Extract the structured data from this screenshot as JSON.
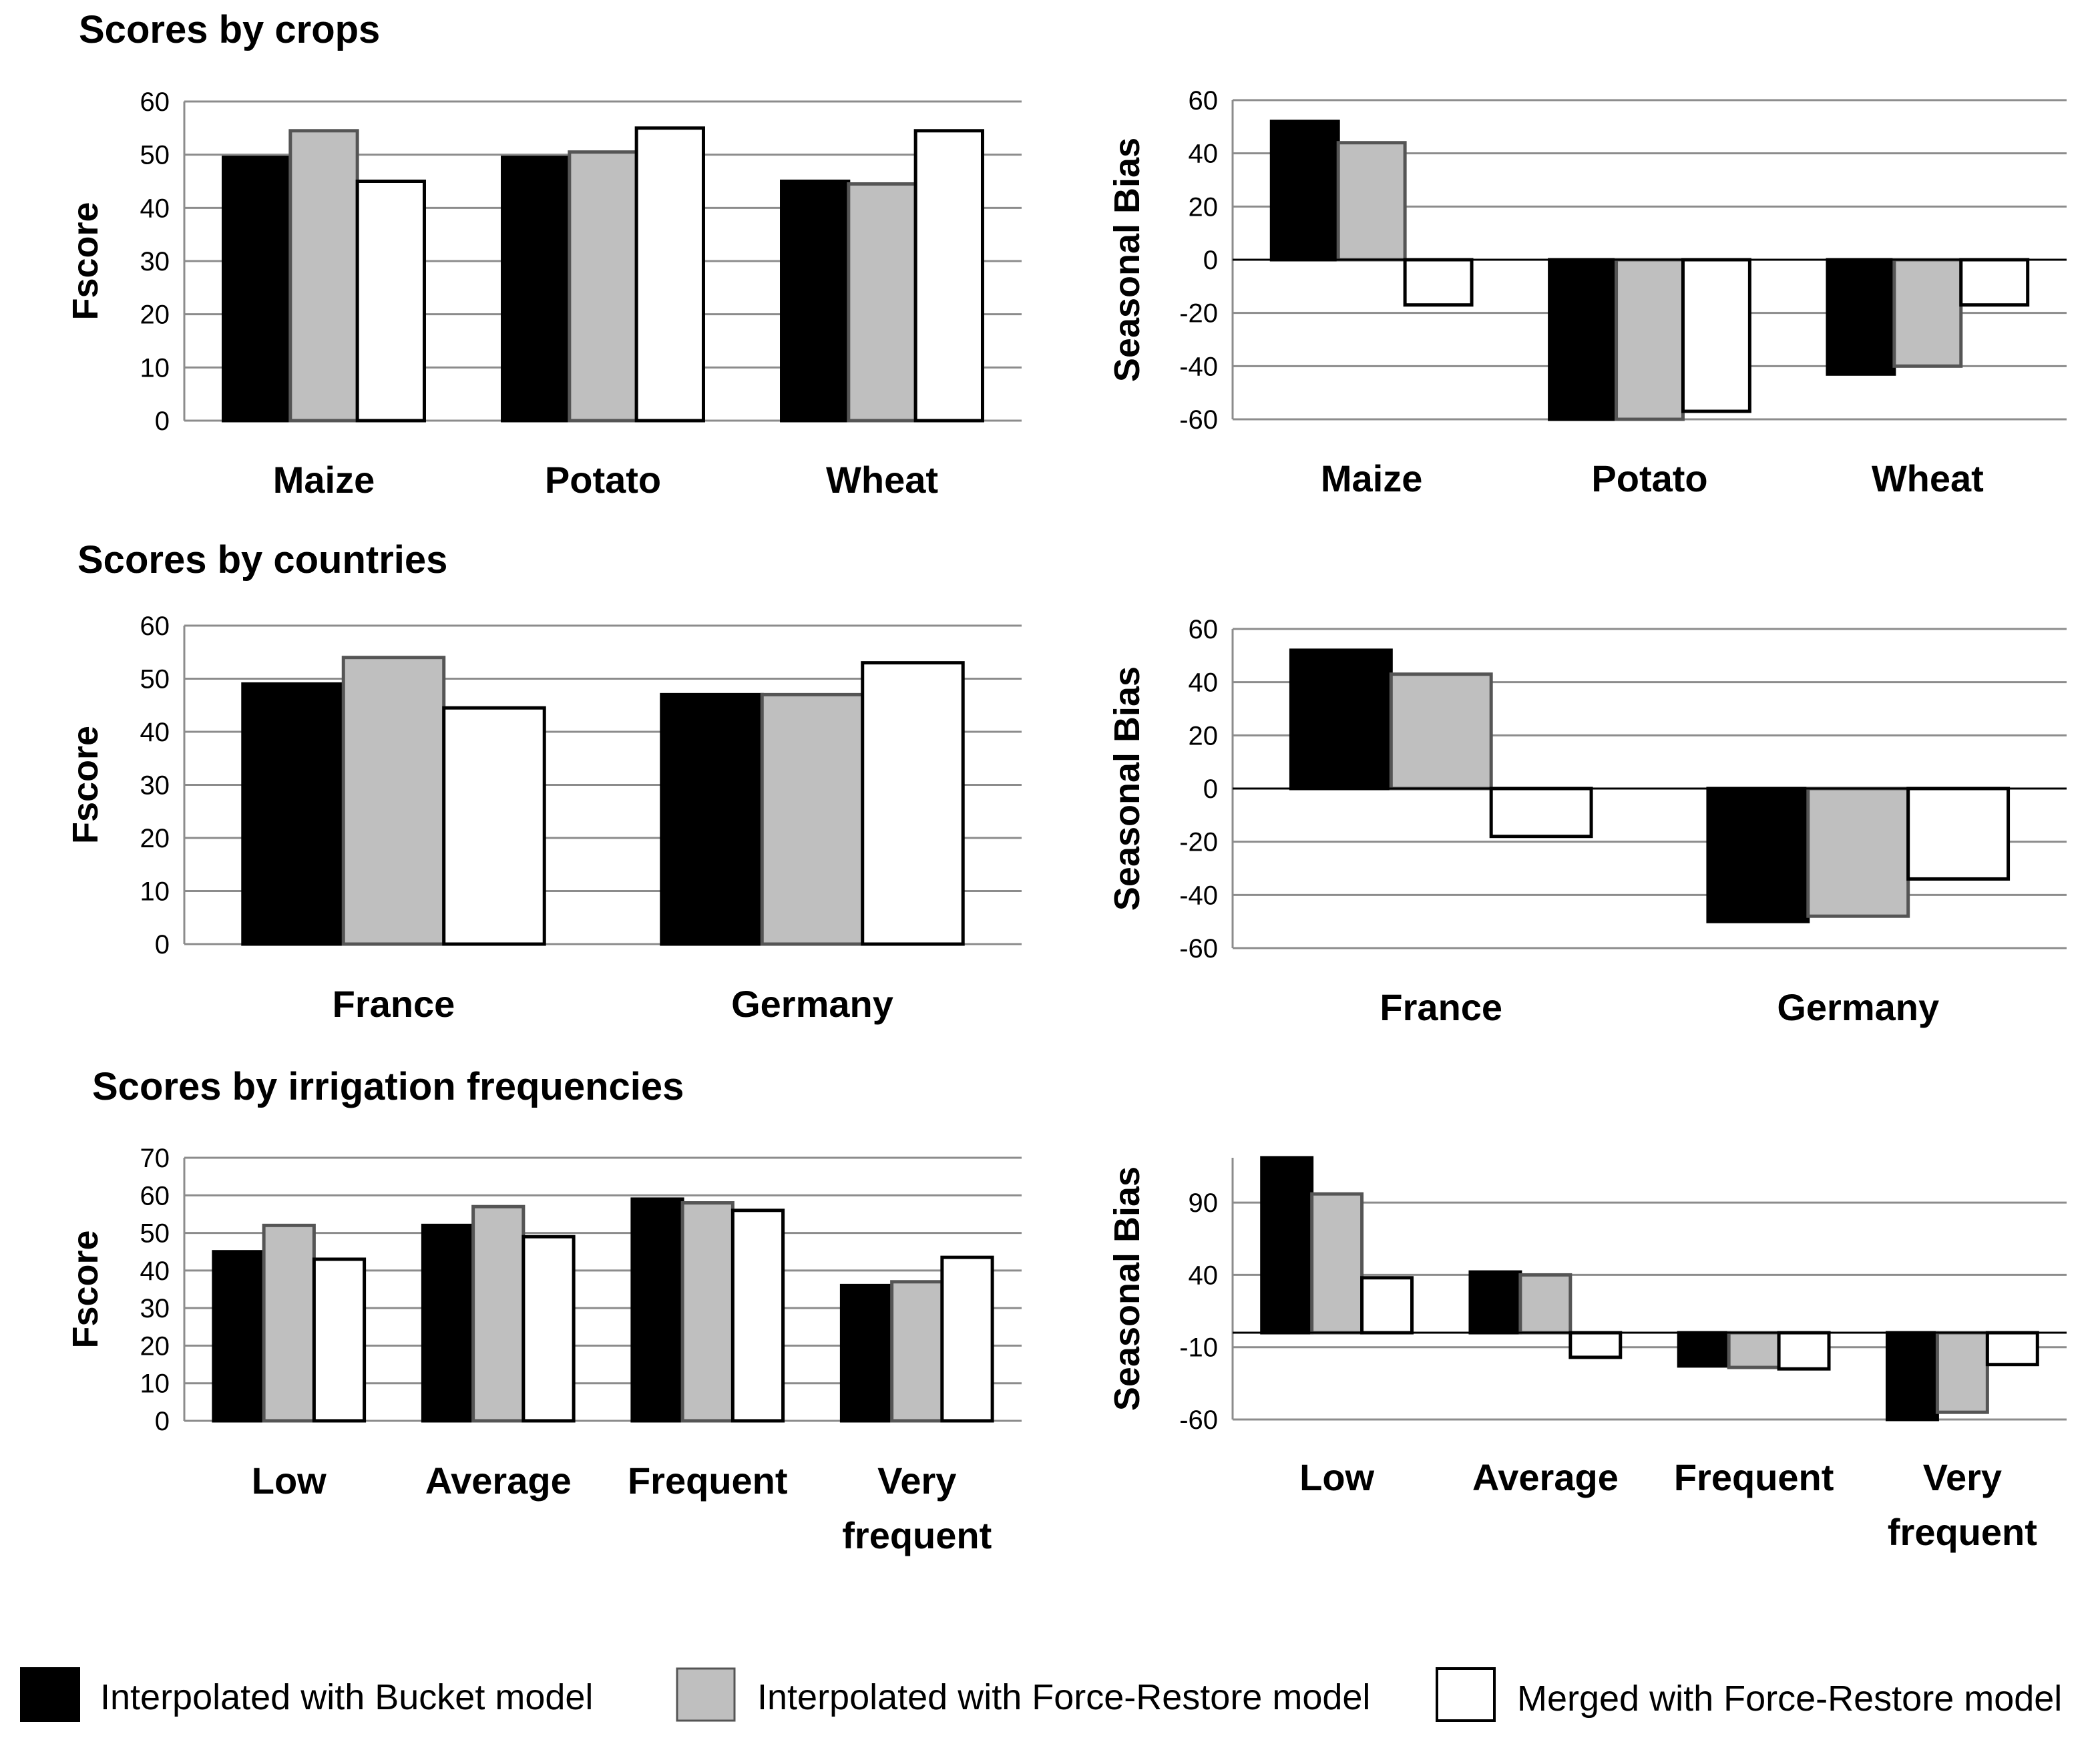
{
  "section_titles": [
    "Scores by crops",
    "Scores by countries",
    "Scores by irrigation frequencies"
  ],
  "series_colors": [
    "#000000",
    "#bfbfbf",
    "#ffffff"
  ],
  "legend": [
    {
      "label": "Interpolated with Bucket model",
      "color": "#000000"
    },
    {
      "label": "Interpolated with Force-Restore model",
      "color": "#bfbfbf"
    },
    {
      "label": "Merged with Force-Restore model",
      "color": "#ffffff"
    }
  ],
  "chart_data": [
    {
      "id": "crops-fscore",
      "type": "bar",
      "title": "",
      "xlabel": "",
      "ylabel": "Fscore",
      "categories": [
        "Maize",
        "Potato",
        "Wheat"
      ],
      "ylim": [
        0,
        60
      ],
      "yticks": [
        0,
        10,
        20,
        30,
        40,
        50,
        60
      ],
      "series": [
        {
          "name": "Interpolated with Bucket model",
          "values": [
            49.5,
            49.5,
            45
          ]
        },
        {
          "name": "Interpolated with Force-Restore model",
          "values": [
            54.5,
            50.5,
            44.5
          ]
        },
        {
          "name": "Merged with Force-Restore model",
          "values": [
            45,
            55,
            54.5
          ]
        }
      ]
    },
    {
      "id": "crops-bias",
      "type": "bar",
      "title": "",
      "xlabel": "",
      "ylabel": "Seasonal Bias",
      "categories": [
        "Maize",
        "Potato",
        "Wheat"
      ],
      "ylim": [
        -60,
        60
      ],
      "yticks": [
        -60,
        -40,
        -20,
        0,
        20,
        40,
        60
      ],
      "series": [
        {
          "name": "Interpolated with Bucket model",
          "values": [
            52,
            -60,
            -43
          ]
        },
        {
          "name": "Interpolated with Force-Restore model",
          "values": [
            44,
            -60,
            -40
          ]
        },
        {
          "name": "Merged with Force-Restore model",
          "values": [
            -17,
            -57,
            -17
          ]
        }
      ]
    },
    {
      "id": "countries-fscore",
      "type": "bar",
      "title": "",
      "xlabel": "",
      "ylabel": "Fscore",
      "categories": [
        "France",
        "Germany"
      ],
      "ylim": [
        0,
        60
      ],
      "yticks": [
        0,
        10,
        20,
        30,
        40,
        50,
        60
      ],
      "series": [
        {
          "name": "Interpolated with Bucket model",
          "values": [
            49,
            47
          ]
        },
        {
          "name": "Interpolated with Force-Restore model",
          "values": [
            54,
            47
          ]
        },
        {
          "name": "Merged with Force-Restore model",
          "values": [
            44.5,
            53
          ]
        }
      ]
    },
    {
      "id": "countries-bias",
      "type": "bar",
      "title": "",
      "xlabel": "",
      "ylabel": "Seasonal Bias",
      "categories": [
        "France",
        "Germany"
      ],
      "ylim": [
        -60,
        60
      ],
      "yticks": [
        -60,
        -40,
        -20,
        0,
        20,
        40,
        60
      ],
      "series": [
        {
          "name": "Interpolated with Bucket model",
          "values": [
            52,
            -50
          ]
        },
        {
          "name": "Interpolated with Force-Restore model",
          "values": [
            43,
            -48
          ]
        },
        {
          "name": "Merged with Force-Restore model",
          "values": [
            -18,
            -34
          ]
        }
      ]
    },
    {
      "id": "irrigation-fscore",
      "type": "bar",
      "title": "",
      "xlabel": "",
      "ylabel": "Fscore",
      "categories": [
        "Low",
        "Average",
        "Frequent",
        "Very\nfrequent"
      ],
      "ylim": [
        0,
        70
      ],
      "yticks": [
        0,
        10,
        20,
        30,
        40,
        50,
        60,
        70
      ],
      "series": [
        {
          "name": "Interpolated with Bucket model",
          "values": [
            45,
            52,
            59,
            36
          ]
        },
        {
          "name": "Interpolated with Force-Restore model",
          "values": [
            52,
            57,
            58,
            37
          ]
        },
        {
          "name": "Merged with Force-Restore model",
          "values": [
            43,
            49,
            56,
            43.5
          ]
        }
      ]
    },
    {
      "id": "irrigation-bias",
      "type": "bar",
      "title": "",
      "xlabel": "",
      "ylabel": "Seasonal Bias",
      "categories": [
        "Low",
        "Average",
        "Frequent",
        "Very\nfrequent"
      ],
      "ylim": [
        -60,
        121
      ],
      "yticks": [
        -60,
        -10,
        40,
        90
      ],
      "grid": [
        -60,
        -10,
        40,
        90
      ],
      "series": [
        {
          "name": "Interpolated with Bucket model",
          "values": [
            121,
            42,
            -23,
            -60
          ]
        },
        {
          "name": "Interpolated with Force-Restore model",
          "values": [
            96,
            40,
            -24,
            -55
          ]
        },
        {
          "name": "Merged with Force-Restore model",
          "values": [
            38,
            -17,
            -25,
            -22
          ]
        }
      ]
    }
  ]
}
